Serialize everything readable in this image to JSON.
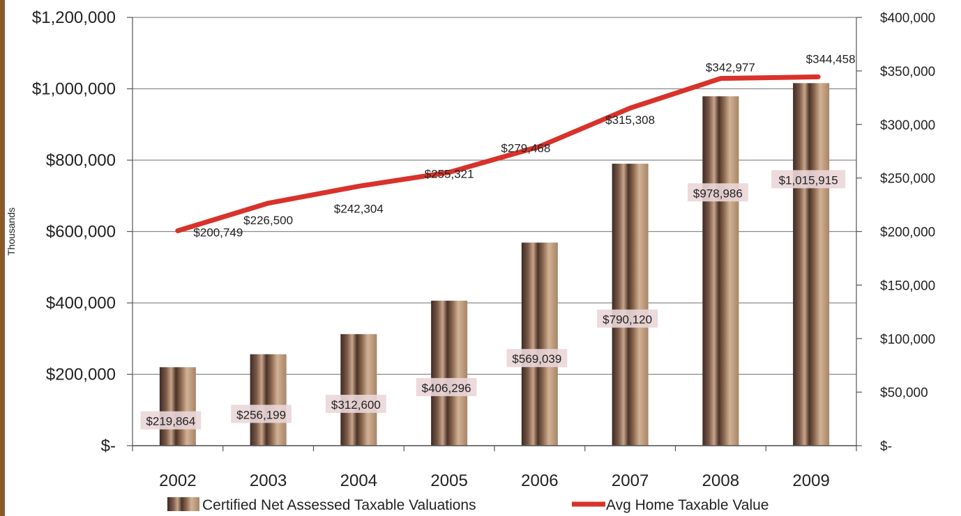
{
  "chart_data": {
    "type": "bar",
    "categories": [
      "2002",
      "2003",
      "2004",
      "2005",
      "2006",
      "2007",
      "2008",
      "2009"
    ],
    "series": [
      {
        "name": "Certified Net Assessed Taxable Valuations",
        "type": "bar",
        "axis": "left",
        "values": [
          219864,
          256199,
          312600,
          406296,
          569039,
          790120,
          978986,
          1015915
        ],
        "labels": [
          "$219,864",
          "$256,199",
          "$312,600",
          "$406,296",
          "$569,039",
          "$790,120",
          "$978,986",
          "$1,015,915"
        ],
        "color": "#8b6b4e"
      },
      {
        "name": "Avg Home Taxable Value",
        "type": "line",
        "axis": "right",
        "values": [
          200749,
          226500,
          242304,
          255321,
          279468,
          315308,
          342977,
          344458
        ],
        "labels": [
          "$200,749",
          "$226,500",
          "$242,304",
          "$255,321",
          "$279,468",
          "$315,308",
          "$342,977",
          "$344,458"
        ],
        "color": "#d8322a"
      }
    ],
    "ylabel": "Thousands",
    "y_left": {
      "ylim": [
        0,
        1200000
      ],
      "ticks": [
        0,
        200000,
        400000,
        600000,
        800000,
        1000000,
        1200000
      ],
      "tick_labels": [
        "$-",
        "$200,000",
        "$400,000",
        "$600,000",
        "$800,000",
        "$1,000,000",
        "$1,200,000"
      ]
    },
    "y_right": {
      "ylim": [
        0,
        400000
      ],
      "ticks": [
        0,
        50000,
        100000,
        150000,
        200000,
        250000,
        300000,
        350000,
        400000
      ],
      "tick_labels": [
        "$-",
        "$50,000",
        "$100,000",
        "$150,000",
        "$200,000",
        "$250,000",
        "$300,000",
        "$350,000",
        "$400,000"
      ]
    },
    "grid": true,
    "legend_position": "bottom"
  }
}
